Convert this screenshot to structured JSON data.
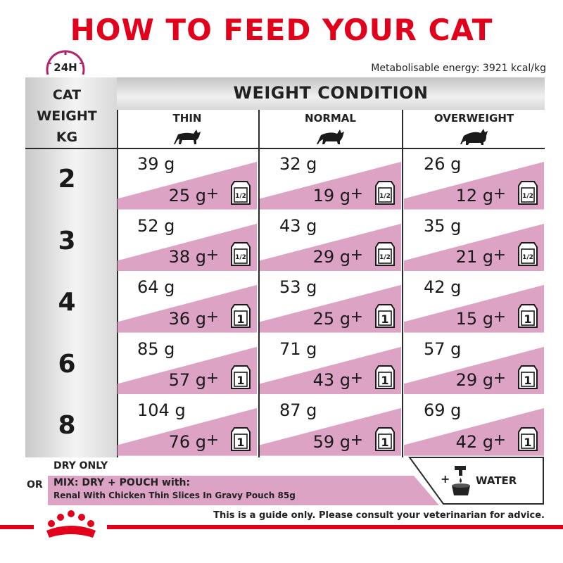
{
  "title": "HOW TO FEED YOUR CAT",
  "clock_label": "24H",
  "energy": "Metabolisable energy: 3921 kcal/kg",
  "cat_weight_label": [
    "CAT",
    "WEIGHT",
    "KG"
  ],
  "weight_condition_label": "WEIGHT CONDITION",
  "columns": [
    "THIN",
    "NORMAL",
    "OVERWEIGHT"
  ],
  "rows": [
    {
      "weight": "2",
      "cells": [
        {
          "dry": "39 g",
          "mix": "25 g",
          "pouch": "1/2"
        },
        {
          "dry": "32 g",
          "mix": "19 g",
          "pouch": "1/2"
        },
        {
          "dry": "26 g",
          "mix": "12 g",
          "pouch": "1/2"
        }
      ]
    },
    {
      "weight": "3",
      "cells": [
        {
          "dry": "52 g",
          "mix": "38 g",
          "pouch": "1/2"
        },
        {
          "dry": "43 g",
          "mix": "29 g",
          "pouch": "1/2"
        },
        {
          "dry": "35 g",
          "mix": "21 g",
          "pouch": "1/2"
        }
      ]
    },
    {
      "weight": "4",
      "cells": [
        {
          "dry": "64 g",
          "mix": "36 g",
          "pouch": "1"
        },
        {
          "dry": "53 g",
          "mix": "25 g",
          "pouch": "1"
        },
        {
          "dry": "42 g",
          "mix": "15 g",
          "pouch": "1"
        }
      ]
    },
    {
      "weight": "6",
      "cells": [
        {
          "dry": "85 g",
          "mix": "57 g",
          "pouch": "1"
        },
        {
          "dry": "71 g",
          "mix": "43 g",
          "pouch": "1"
        },
        {
          "dry": "57 g",
          "mix": "29 g",
          "pouch": "1"
        }
      ]
    },
    {
      "weight": "8",
      "cells": [
        {
          "dry": "104 g",
          "mix": "76 g",
          "pouch": "1"
        },
        {
          "dry": "87 g",
          "mix": "59 g",
          "pouch": "1"
        },
        {
          "dry": "69 g",
          "mix": "42 g",
          "pouch": "1"
        }
      ]
    }
  ],
  "plus_sign": "+",
  "footer": {
    "dry_only": "DRY ONLY",
    "or": "OR",
    "mix_label": "MIX: DRY + POUCH with:",
    "product": "Renal With Chicken Thin Slices In Gravy Pouch 85g",
    "water_plus": "+",
    "water": "WATER",
    "disclaimer": "This is a guide only. Please consult your veterinarian for advice."
  },
  "colors": {
    "brand_red": "#e2001a",
    "mix_pink": "#dca3c4",
    "clock_magenta": "#b2236e"
  },
  "icons": [
    "clock-icon",
    "cat-icon",
    "pouch-icon",
    "water-tap-icon",
    "royal-canin-crown-logo"
  ]
}
